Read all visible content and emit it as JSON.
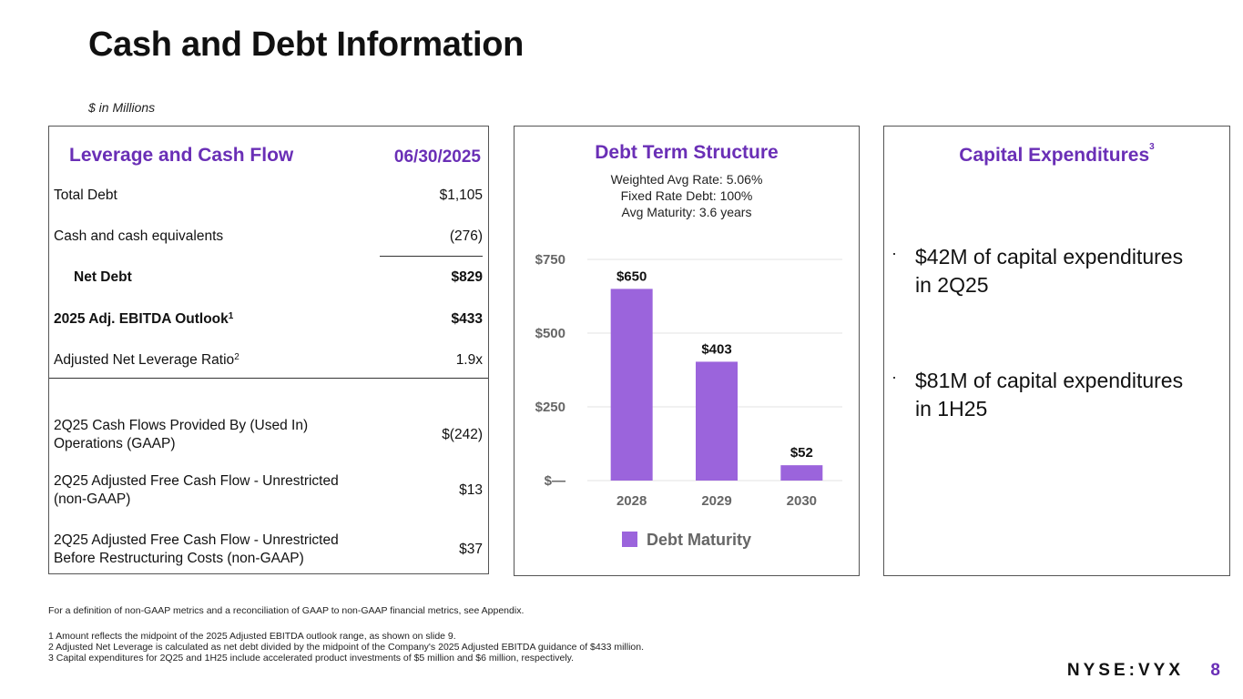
{
  "page": {
    "title": "Cash and Debt Information",
    "subtitle": "$ in Millions",
    "brand": "NYSE:VYX",
    "page_number": "8",
    "footnote_intro": "For a definition of non-GAAP metrics and a reconciliation of GAAP to non-GAAP financial metrics, see Appendix.",
    "footnotes": [
      "1 Amount reflects the midpoint of the 2025 Adjusted EBITDA outlook range, as shown on slide 9.",
      "2 Adjusted Net Leverage is calculated as net debt divided by the midpoint of the Company's 2025 Adjusted EBITDA guidance of $433 million.",
      "3 Capital expenditures for 2Q25 and 1H25 include accelerated product investments of $5 million and $6 million, respectively."
    ]
  },
  "leverage": {
    "heading": "Leverage and Cash Flow",
    "date": "06/30/2025",
    "rows": [
      {
        "label": "Total Debt",
        "value": "$1,105"
      },
      {
        "label": "Cash and cash equivalents",
        "value": "(276)"
      },
      {
        "label": "Net Debt",
        "value": "$829"
      },
      {
        "label": "2025 Adj. EBITDA Outlook",
        "sup": "1",
        "value": "$433"
      },
      {
        "label": "Adjusted Net Leverage Ratio",
        "sup": "2",
        "value": "1.9x"
      },
      {
        "label_line1": "2Q25 Cash Flows Provided By (Used In)",
        "label_line2": "Operations (GAAP)",
        "value": "$(242)"
      },
      {
        "label_line1": "2Q25 Adjusted Free Cash Flow - Unrestricted",
        "label_line2": "(non-GAAP)",
        "value": "$13"
      },
      {
        "label_line1": "2Q25 Adjusted Free Cash Flow - Unrestricted",
        "label_line2": "Before Restructuring Costs (non-GAAP)",
        "value": "$37"
      }
    ]
  },
  "debt": {
    "heading": "Debt Term Structure",
    "notes": [
      "Weighted Avg Rate: 5.06%",
      "Fixed Rate Debt: 100%",
      "Avg Maturity: 3.6 years"
    ]
  },
  "capex": {
    "heading": "Capital Expenditures",
    "heading_sup": "3",
    "bullets": [
      {
        "line1": "$42M of capital expenditures",
        "line2": "in 2Q25"
      },
      {
        "line1": "$81M of capital expenditures",
        "line2": "in 1H25"
      }
    ]
  },
  "chart_data": {
    "type": "bar",
    "title": "Debt Term Structure",
    "categories": [
      "2028",
      "2029",
      "2030"
    ],
    "series": [
      {
        "name": "Debt Maturity",
        "values": [
          650,
          403,
          52
        ],
        "labels": [
          "$650",
          "$403",
          "$52"
        ]
      }
    ],
    "yticks": [
      0,
      250,
      500,
      750
    ],
    "ytick_labels": [
      "$—",
      "$250",
      "$500",
      "$750"
    ],
    "ylim": [
      0,
      750
    ],
    "grid": true,
    "legend": "bottom",
    "colors": {
      "bar": "#9b64dc",
      "grid": "#e3e3e3",
      "axis_text": "#666666"
    }
  }
}
